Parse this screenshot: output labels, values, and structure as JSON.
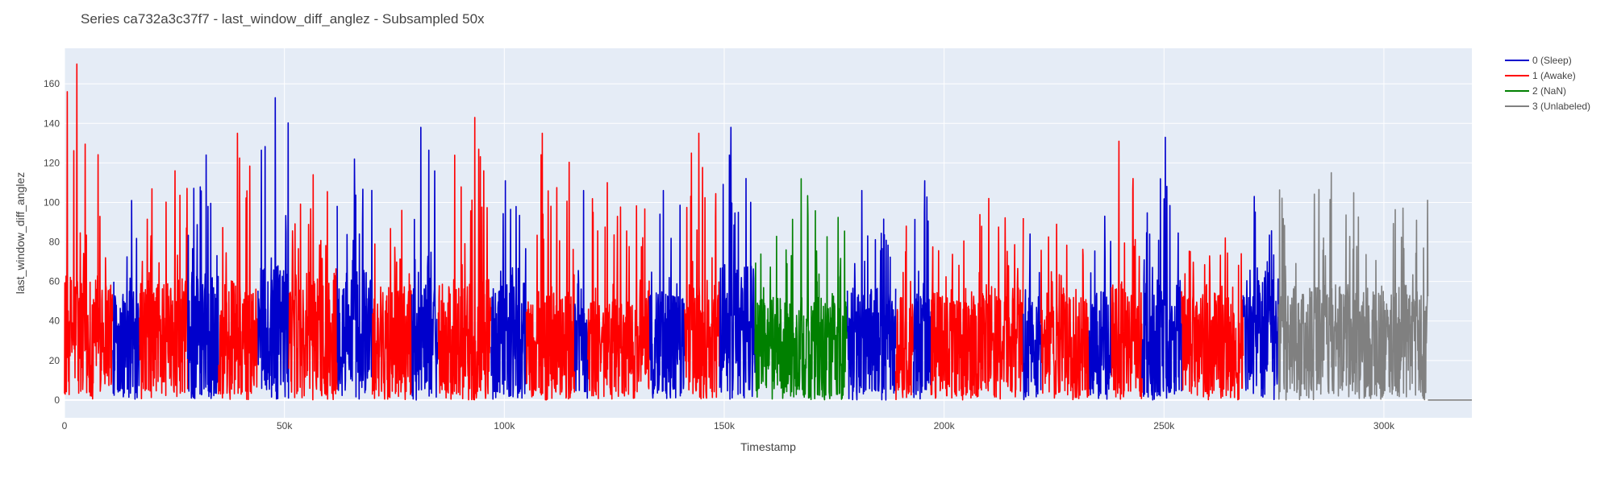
{
  "chart_data": {
    "type": "line",
    "title": "Series ca732a3c37f7 - last_window_diff_anglez - Subsampled 50x",
    "xlabel": "Timestamp",
    "ylabel": "last_window_diff_anglez",
    "xlim": [
      0,
      320000
    ],
    "ylim": [
      -9,
      178
    ],
    "x_ticks": [
      {
        "value": 0,
        "label": "0"
      },
      {
        "value": 50000,
        "label": "50k"
      },
      {
        "value": 100000,
        "label": "100k"
      },
      {
        "value": 150000,
        "label": "150k"
      },
      {
        "value": 200000,
        "label": "200k"
      },
      {
        "value": 250000,
        "label": "250k"
      },
      {
        "value": 300000,
        "label": "300k"
      }
    ],
    "y_ticks": [
      0,
      20,
      40,
      60,
      80,
      100,
      120,
      140,
      160
    ],
    "grid": true,
    "background": "#e5ecf6",
    "legend_position": "right",
    "series": [
      {
        "name": "0 (Sleep)",
        "color": "#0000cc"
      },
      {
        "name": "1 (Awake)",
        "color": "#ff0000"
      },
      {
        "name": "2 (NaN)",
        "color": "#008000"
      },
      {
        "name": "3 (Unlabeled)",
        "color": "#808080"
      }
    ],
    "segments": [
      {
        "series": 1,
        "x_start": 0,
        "x_end": 11000,
        "mean": 38,
        "max": 170
      },
      {
        "series": 0,
        "x_start": 11000,
        "x_end": 17000,
        "mean": 32,
        "max": 101
      },
      {
        "series": 1,
        "x_start": 17000,
        "x_end": 28000,
        "mean": 36,
        "max": 116
      },
      {
        "series": 0,
        "x_start": 28000,
        "x_end": 35000,
        "mean": 38,
        "max": 124
      },
      {
        "series": 1,
        "x_start": 35000,
        "x_end": 44000,
        "mean": 36,
        "max": 135
      },
      {
        "series": 0,
        "x_start": 44000,
        "x_end": 51000,
        "mean": 40,
        "max": 153
      },
      {
        "series": 1,
        "x_start": 51000,
        "x_end": 62000,
        "mean": 38,
        "max": 114
      },
      {
        "series": 0,
        "x_start": 62000,
        "x_end": 70000,
        "mean": 40,
        "max": 122
      },
      {
        "series": 1,
        "x_start": 70000,
        "x_end": 79000,
        "mean": 34,
        "max": 96
      },
      {
        "series": 0,
        "x_start": 79000,
        "x_end": 85000,
        "mean": 35,
        "max": 138
      },
      {
        "series": 1,
        "x_start": 85000,
        "x_end": 97000,
        "mean": 36,
        "max": 143
      },
      {
        "series": 0,
        "x_start": 97000,
        "x_end": 105000,
        "mean": 36,
        "max": 111
      },
      {
        "series": 1,
        "x_start": 105000,
        "x_end": 116000,
        "mean": 33,
        "max": 135
      },
      {
        "series": 0,
        "x_start": 116000,
        "x_end": 119000,
        "mean": 34,
        "max": 106
      },
      {
        "series": 1,
        "x_start": 119000,
        "x_end": 133000,
        "mean": 30,
        "max": 110
      },
      {
        "series": 0,
        "x_start": 133000,
        "x_end": 141000,
        "mean": 32,
        "max": 106
      },
      {
        "series": 1,
        "x_start": 141000,
        "x_end": 149000,
        "mean": 35,
        "max": 135
      },
      {
        "series": 0,
        "x_start": 149000,
        "x_end": 157000,
        "mean": 40,
        "max": 138
      },
      {
        "series": 2,
        "x_start": 157000,
        "x_end": 178000,
        "mean": 30,
        "max": 112
      },
      {
        "series": 0,
        "x_start": 178000,
        "x_end": 189000,
        "mean": 34,
        "max": 106
      },
      {
        "series": 1,
        "x_start": 189000,
        "x_end": 193000,
        "mean": 30,
        "max": 88
      },
      {
        "series": 0,
        "x_start": 193000,
        "x_end": 197000,
        "mean": 32,
        "max": 111
      },
      {
        "series": 1,
        "x_start": 197000,
        "x_end": 218000,
        "mean": 33,
        "max": 102
      },
      {
        "series": 0,
        "x_start": 218000,
        "x_end": 222000,
        "mean": 30,
        "max": 84
      },
      {
        "series": 1,
        "x_start": 222000,
        "x_end": 233000,
        "mean": 32,
        "max": 89
      },
      {
        "series": 0,
        "x_start": 233000,
        "x_end": 238000,
        "mean": 32,
        "max": 93
      },
      {
        "series": 1,
        "x_start": 238000,
        "x_end": 245000,
        "mean": 35,
        "max": 131
      },
      {
        "series": 0,
        "x_start": 245000,
        "x_end": 254000,
        "mean": 36,
        "max": 133
      },
      {
        "series": 1,
        "x_start": 254000,
        "x_end": 268000,
        "mean": 32,
        "max": 82
      },
      {
        "series": 0,
        "x_start": 268000,
        "x_end": 276000,
        "mean": 36,
        "max": 103
      },
      {
        "series": 3,
        "x_start": 276000,
        "x_end": 310000,
        "mean": 34,
        "max": 115
      },
      {
        "series": 3,
        "x_start": 310000,
        "x_end": 320000,
        "mean": 0,
        "max": 0
      }
    ]
  }
}
